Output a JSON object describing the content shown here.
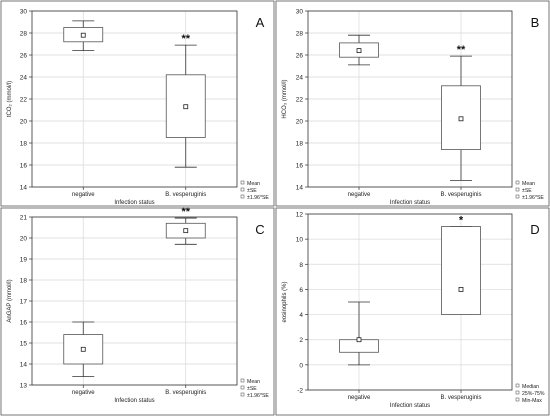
{
  "chart_data": [
    {
      "panel_label": "A",
      "type": "box",
      "ylabel": "tCO₂ (mmol/l)",
      "xlabel": "Infection status",
      "ylim": [
        14,
        30
      ],
      "yticks": [
        14,
        16,
        18,
        20,
        22,
        24,
        26,
        28,
        30
      ],
      "categories": [
        "negative",
        "B. vesperuginis"
      ],
      "boxes": [
        {
          "center": 27.8,
          "box_low": 27.2,
          "box_high": 28.5,
          "whisker_low": 26.4,
          "whisker_high": 29.1,
          "mark": ""
        },
        {
          "center": 21.3,
          "box_low": 18.5,
          "box_high": 24.2,
          "whisker_low": 15.8,
          "whisker_high": 26.9,
          "mark": "**"
        }
      ],
      "legend": [
        "Mean",
        "±SE",
        "±1.96*SE"
      ],
      "grid": true
    },
    {
      "panel_label": "B",
      "type": "box",
      "ylabel": "HCO₃ (mmol/l)",
      "xlabel": "Infection status",
      "ylim": [
        14,
        30
      ],
      "yticks": [
        14,
        16,
        18,
        20,
        22,
        24,
        26,
        28,
        30
      ],
      "categories": [
        "negative",
        "B. vesperuginis"
      ],
      "boxes": [
        {
          "center": 26.4,
          "box_low": 25.8,
          "box_high": 27.1,
          "whisker_low": 25.1,
          "whisker_high": 27.8,
          "mark": ""
        },
        {
          "center": 20.2,
          "box_low": 17.4,
          "box_high": 23.2,
          "whisker_low": 14.6,
          "whisker_high": 25.9,
          "mark": "**"
        }
      ],
      "legend": [
        "Mean",
        "±SE",
        "±1.96*SE"
      ],
      "grid": true
    },
    {
      "panel_label": "C",
      "type": "box",
      "ylabel": "AnGAP (mmol/l)",
      "xlabel": "Infection status",
      "ylim": [
        13,
        21
      ],
      "yticks": [
        13,
        14,
        15,
        16,
        17,
        18,
        19,
        20,
        21
      ],
      "categories": [
        "negative",
        "B. vesperuginis"
      ],
      "boxes": [
        {
          "center": 14.7,
          "box_low": 14.0,
          "box_high": 15.4,
          "whisker_low": 13.4,
          "whisker_high": 16.0,
          "mark": ""
        },
        {
          "center": 20.35,
          "box_low": 20.0,
          "box_high": 20.7,
          "whisker_low": 19.7,
          "whisker_high": 20.95,
          "mark": "**"
        }
      ],
      "legend": [
        "Mean",
        "±SE",
        "±1.96*SE"
      ],
      "grid": true
    },
    {
      "panel_label": "D",
      "type": "box",
      "ylabel": "eosinophils (%)",
      "xlabel": "Infection status",
      "ylim": [
        -2,
        12
      ],
      "yticks": [
        -2,
        0,
        2,
        4,
        6,
        8,
        10,
        12
      ],
      "categories": [
        "negative",
        "B. vesperuginis"
      ],
      "boxes": [
        {
          "center": 2,
          "box_low": 1,
          "box_high": 2,
          "whisker_low": 0,
          "whisker_high": 5,
          "mark": ""
        },
        {
          "center": 6,
          "box_low": 4,
          "box_high": 11,
          "whisker_low": 4,
          "whisker_high": 11,
          "mark": "*"
        }
      ],
      "legend": [
        "Median",
        "25%-75%",
        "Min-Max"
      ],
      "grid": true
    }
  ]
}
